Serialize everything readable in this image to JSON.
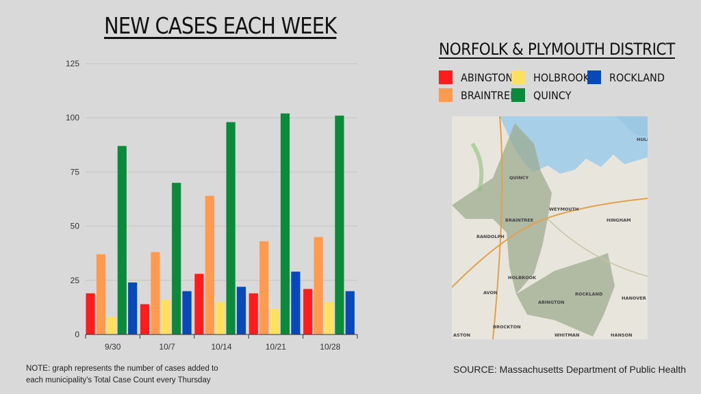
{
  "header": {
    "title": "NEW CASES EACH WEEK",
    "district_title": "NORFOLK & PLYMOUTH DISTRICT"
  },
  "chart_data": {
    "type": "bar",
    "title": "NEW CASES EACH WEEK",
    "categories": [
      "9/30",
      "10/7",
      "10/14",
      "10/21",
      "10/28"
    ],
    "ylim": [
      0,
      125
    ],
    "yticks": [
      0,
      25,
      50,
      75,
      100,
      125
    ],
    "grid": true,
    "legend_position": "right",
    "series": [
      {
        "name": "ABINGTON",
        "color": "#ff1c1c",
        "values": [
          19,
          14,
          28,
          19,
          21
        ]
      },
      {
        "name": "BRAINTREE",
        "color": "#ff9a4e",
        "values": [
          37,
          38,
          64,
          43,
          45
        ]
      },
      {
        "name": "HOLBROOK",
        "color": "#ffe15e",
        "values": [
          8,
          16,
          15,
          12,
          15
        ]
      },
      {
        "name": "QUINCY",
        "color": "#0c8a3b",
        "values": [
          87,
          70,
          98,
          102,
          101
        ]
      },
      {
        "name": "ROCKLAND",
        "color": "#0749b8",
        "values": [
          24,
          20,
          22,
          29,
          20
        ]
      }
    ]
  },
  "legend": [
    {
      "label": "ABINGTON",
      "color": "#ff1c1c"
    },
    {
      "label": "BRAINTREE",
      "color": "#ff9a4e"
    },
    {
      "label": "HOLBROOK",
      "color": "#ffe15e"
    },
    {
      "label": "QUINCY",
      "color": "#0c8a3b"
    },
    {
      "label": "ROCKLAND",
      "color": "#0749b8"
    }
  ],
  "map": {
    "labels": [
      "QUINCY",
      "WEYMOUTH",
      "BRAINTREE",
      "RANDOLPH",
      "HINGHAM",
      "HOLBROOK",
      "ROCKLAND",
      "ABINGTON",
      "AVON",
      "HANOVER",
      "BROCKTON",
      "WHITMAN",
      "HANSON",
      "ASTON",
      "HULL"
    ]
  },
  "note": "NOTE: graph represents the number of cases added to each municipality's Total Case Count every Thursday",
  "source": "SOURCE: Massachusetts Department of Public Health"
}
